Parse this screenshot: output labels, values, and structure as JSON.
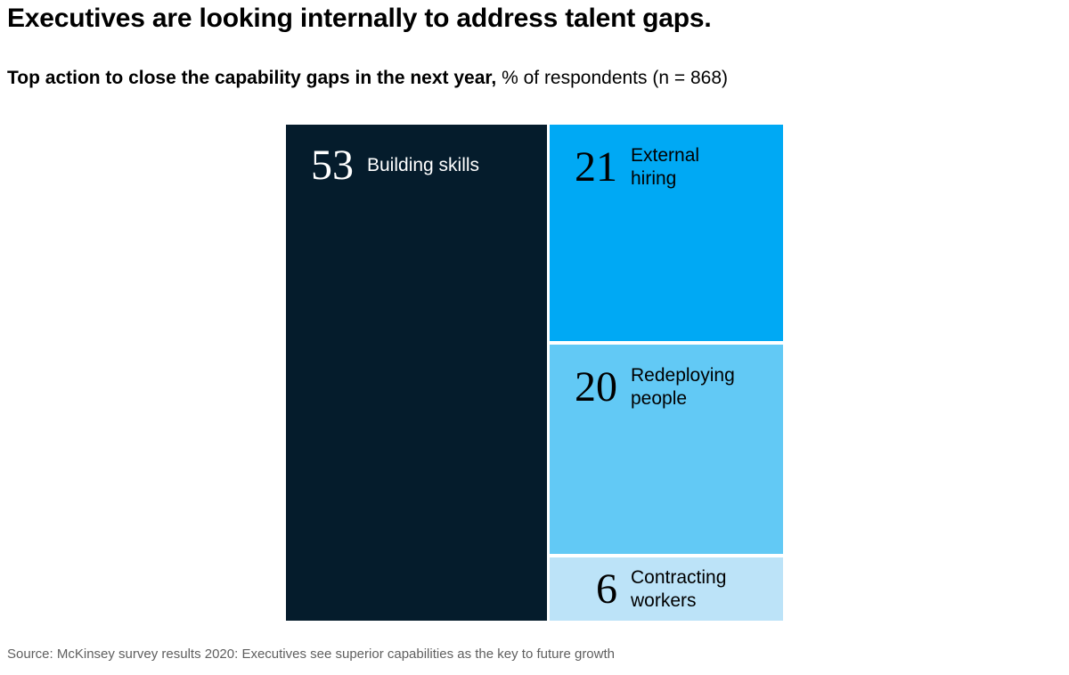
{
  "page": {
    "title": "Executives are looking internally to address talent gaps.",
    "subtitle_bold": "Top action to close the capability gaps in the next year,",
    "subtitle_regular": " % of respondents (n = 868)",
    "source": "Source: McKinsey survey results 2020: Executives see superior capabilities as the key to future growth"
  },
  "chart_data": {
    "type": "treemap",
    "title": "Top action to close the capability gaps in the next year",
    "unit": "% of respondents",
    "sample_note": "n = 868",
    "legend_position": "none",
    "layout": "left block full height (53%), right column stacked vertically (21/20/6)",
    "gap_color": "#FFFFFF",
    "segments": [
      {
        "label": "Building skills",
        "value": 53,
        "color": "#051C2C",
        "text_color": "#FFFFFF"
      },
      {
        "label": "External hiring",
        "value": 21,
        "color": "#00A9F4",
        "text_color": "#000000"
      },
      {
        "label": "Redeploying people",
        "value": 20,
        "color": "#62C9F5",
        "text_color": "#000000"
      },
      {
        "label": "Contracting workers",
        "value": 6,
        "color": "#BCE3F8",
        "text_color": "#000000"
      }
    ]
  }
}
